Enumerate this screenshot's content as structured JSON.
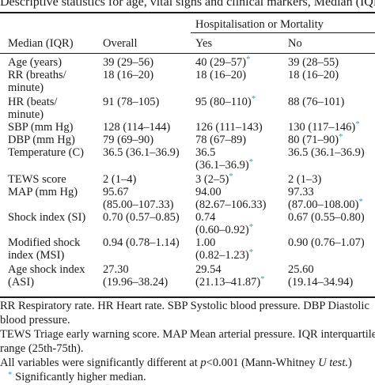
{
  "caption": "Descriptive statistics for age, vital signs and clinical markers, Median (IQR).",
  "table": {
    "group_header": "Hospitalisation or Mortality",
    "columns": [
      "Median (IQR)",
      "Overall",
      "Yes",
      "No"
    ],
    "rows": [
      {
        "label": [
          "Age (years)"
        ],
        "overall": [
          "39 (29–56)"
        ],
        "yes": [
          "40 (29–57)"
        ],
        "no": [
          "39 (28–55)"
        ],
        "yes_star": true,
        "no_star": false
      },
      {
        "label": [
          "RR (breaths/",
          "minute)"
        ],
        "overall": [
          "18 (16–20)"
        ],
        "yes": [
          "18 (16–20)"
        ],
        "no": [
          "18 (16–20)"
        ],
        "yes_star": false,
        "no_star": false
      },
      {
        "label": [
          "HR (beats/",
          "minute)"
        ],
        "overall": [
          "91 (78–105)"
        ],
        "yes": [
          "95 (80–110)"
        ],
        "no": [
          "88 (76–101)"
        ],
        "yes_star": true,
        "no_star": false
      },
      {
        "label": [
          "SBP (mm Hg)"
        ],
        "overall": [
          "128 (114–144)"
        ],
        "yes": [
          "126 (111–143)"
        ],
        "no": [
          "130 (117–146)"
        ],
        "yes_star": false,
        "no_star": true
      },
      {
        "label": [
          "DBP (mm Hg)"
        ],
        "overall": [
          "79 (69–90)"
        ],
        "yes": [
          "78 (67–89)"
        ],
        "no": [
          "80 (71–90)"
        ],
        "yes_star": false,
        "no_star": true
      },
      {
        "label": [
          "Temperature (C)"
        ],
        "overall": [
          "36.5 (36.1–36.9)"
        ],
        "yes": [
          "36.5",
          "(36.1–36.9)"
        ],
        "no": [
          "36.5 (36.1–36.9)"
        ],
        "yes_star": true,
        "no_star": false
      },
      {
        "label": [
          "TEWS score"
        ],
        "overall": [
          "2 (1–4)"
        ],
        "yes": [
          "3 (2–5)"
        ],
        "no": [
          "2 (1–3)"
        ],
        "yes_star": true,
        "no_star": false
      },
      {
        "label": [
          "MAP (mm Hg)"
        ],
        "overall": [
          "95.67",
          "(85.00–107.33)"
        ],
        "yes": [
          "94.00",
          "(82.67–106.33)"
        ],
        "no": [
          "97.33",
          "(87.00–108.00)"
        ],
        "yes_star": false,
        "no_star": true
      },
      {
        "label": [
          "Shock index (SI)"
        ],
        "overall": [
          "0.70 (0.57–0.85)"
        ],
        "yes": [
          "0.74",
          "(0.60–0.92)"
        ],
        "no": [
          "0.67 (0.55–0.80)"
        ],
        "yes_star": true,
        "no_star": false
      },
      {
        "label": [
          "Modified shock",
          "index (MSI)"
        ],
        "overall": [
          "0.94 (0.78–1.14)"
        ],
        "yes": [
          "1.00",
          "(0.82–1.23)"
        ],
        "no": [
          "0.90 (0.76–1.07)"
        ],
        "yes_star": true,
        "no_star": false
      },
      {
        "label": [
          "Age shock index",
          "(ASI)"
        ],
        "overall": [
          "27.30",
          "(19.96–38.24)"
        ],
        "yes": [
          "29.54",
          "(21.13–41.87)"
        ],
        "no": [
          "25.60",
          "(19.14–34.94)"
        ],
        "yes_star": true,
        "no_star": false
      }
    ]
  },
  "footnotes": {
    "abbrev_1": "RR Respiratory rate. HR Heart rate. SBP Systolic blood pressure. DBP Diastolic",
    "abbrev_2": "blood pressure.",
    "abbrev_3": "TEWS Triage early warning score. MAP Mean arterial pressure. IQR interquartile",
    "abbrev_4": "range (25th-75th).",
    "sig_prefix": "All variables were significantly different at ",
    "sig_p": "p",
    "sig_mid": "<0.001 (Mann-Whitney ",
    "sig_u": "U test.",
    "sig_suffix": ")",
    "star_symbol": "*",
    "star_note": "Significantly higher median."
  },
  "colors": {
    "star": "#2a9fd6",
    "text": "#1a1a1a"
  }
}
